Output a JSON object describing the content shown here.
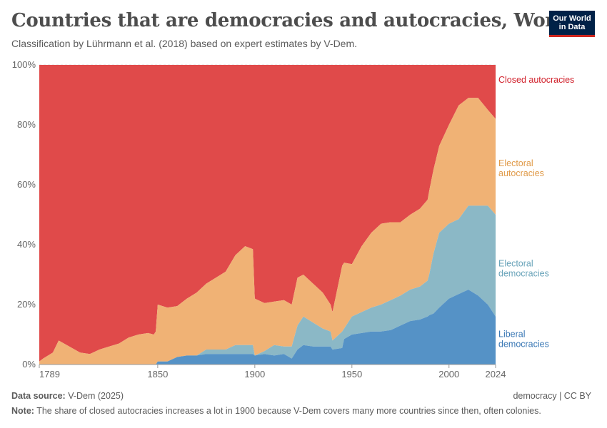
{
  "header": {
    "title": "Countries that are democracies and autocracies, World",
    "subtitle": "Classification by Lührmann et al. (2018) based on expert estimates by V-Dem.",
    "logo_line1": "Our World",
    "logo_line2": "in Data"
  },
  "footer": {
    "source_label": "Data source:",
    "source_value": "V-Dem (2025)",
    "topic_link": "democracy",
    "separator": "|",
    "license_link": "CC BY",
    "note_label": "Note:",
    "note_text": "The share of closed autocracies increases a lot in 1900 because V-Dem covers many more countries since then, often colonies."
  },
  "colors": {
    "closed_autocracies": "#e04a4a",
    "electoral_autocracies": "#f0b275",
    "electoral_democracies": "#8bb8c6",
    "liberal_democracies": "#5592c6",
    "closed_label": "#d1202b",
    "electoral_aut_label": "#e09a48",
    "electoral_dem_label": "#6aa4ba",
    "liberal_label": "#3a78b5"
  },
  "chart_data": {
    "type": "area",
    "stacked": true,
    "normalized": true,
    "title": "Countries that are democracies and autocracies, World",
    "xlabel": "",
    "ylabel": "",
    "xlim": [
      1789,
      2024
    ],
    "ylim": [
      0,
      100
    ],
    "y_ticks": [
      "0%",
      "20%",
      "40%",
      "60%",
      "80%",
      "100%"
    ],
    "x_ticks": [
      "1789",
      "1850",
      "1900",
      "1950",
      "2000",
      "2024"
    ],
    "grid": true,
    "x": [
      1789,
      1791,
      1796,
      1799,
      1810,
      1815,
      1820,
      1825,
      1830,
      1835,
      1840,
      1845,
      1848,
      1849,
      1850,
      1855,
      1860,
      1865,
      1870,
      1875,
      1880,
      1885,
      1890,
      1895,
      1899,
      1900,
      1905,
      1910,
      1915,
      1919,
      1922,
      1925,
      1930,
      1935,
      1939,
      1940,
      1945,
      1946,
      1950,
      1955,
      1960,
      1965,
      1970,
      1975,
      1980,
      1985,
      1989,
      1990,
      1992,
      1995,
      2000,
      2005,
      2010,
      2015,
      2020,
      2024
    ],
    "series": [
      {
        "name": "Liberal democracies",
        "values": [
          0,
          0,
          0,
          0,
          0,
          0,
          0,
          0,
          0,
          0,
          0,
          0,
          0,
          0,
          1,
          1,
          2.5,
          3,
          3,
          3.5,
          3.5,
          3.5,
          3.5,
          3.5,
          3.5,
          3,
          3.5,
          3,
          3.5,
          2,
          5,
          6.5,
          6,
          6,
          6,
          5,
          5.5,
          8.5,
          10,
          10.5,
          11,
          11,
          11.5,
          13,
          14.5,
          15,
          16,
          16.5,
          17,
          19,
          22,
          23.5,
          25,
          23,
          20,
          16
        ]
      },
      {
        "name": "Electoral democracies",
        "values": [
          0,
          0,
          0,
          0,
          0,
          0,
          0,
          0,
          0,
          0,
          0,
          0,
          0,
          0,
          0,
          0,
          0,
          0,
          0,
          1.5,
          1.5,
          1.5,
          3,
          3,
          3,
          0,
          1,
          3.5,
          2.5,
          4,
          8,
          9.5,
          8,
          6,
          5,
          3,
          5.5,
          3.5,
          6,
          7,
          8,
          9,
          10,
          10,
          10.5,
          11,
          12,
          14,
          20,
          25,
          25,
          25,
          28,
          30,
          33,
          34
        ]
      },
      {
        "name": "Electoral autocracies",
        "values": [
          1,
          2,
          4,
          8,
          4,
          3.5,
          5,
          6,
          7,
          9,
          10,
          10.5,
          10,
          11,
          19,
          18,
          17,
          19,
          21,
          22,
          24,
          26,
          30,
          33,
          32,
          19,
          16,
          14.5,
          15.5,
          14,
          16,
          14,
          13,
          12,
          9,
          9.5,
          22,
          22,
          17.5,
          22,
          25,
          27,
          26,
          24.5,
          25,
          26,
          27,
          28,
          28,
          29,
          33,
          38,
          36,
          36,
          32,
          32
        ]
      }
    ],
    "computed_series": {
      "name": "Closed autocracies",
      "rule": "100 minus sum of other series"
    },
    "legend": [
      {
        "name": "Closed autocracies",
        "label_lines": [
          "Closed autocracies"
        ]
      },
      {
        "name": "Electoral autocracies",
        "label_lines": [
          "Electoral",
          "autocracies"
        ]
      },
      {
        "name": "Electoral democracies",
        "label_lines": [
          "Electoral",
          "democracies"
        ]
      },
      {
        "name": "Liberal democracies",
        "label_lines": [
          "Liberal",
          "democracies"
        ]
      }
    ],
    "legend_placement": "right, inline labels"
  }
}
